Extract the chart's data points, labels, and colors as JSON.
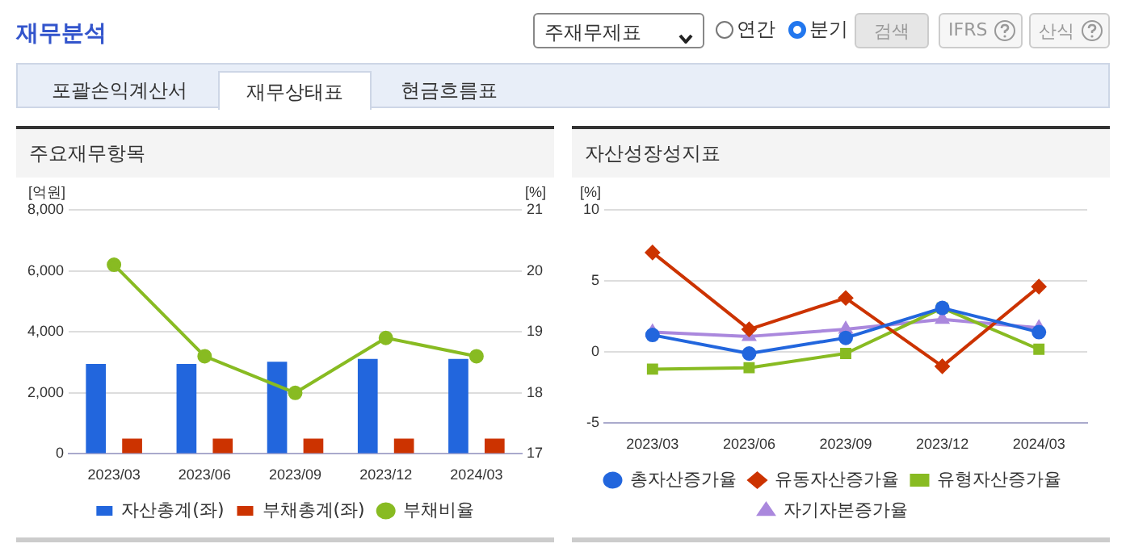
{
  "chart_data": [
    {
      "type": "bar",
      "title": "주요재무항목",
      "annotations": [
        "재무분석",
        "주재무제표",
        "연간",
        "분기",
        "검색",
        "IFRS",
        "산식",
        "포괄손익계산서",
        "재무상태표",
        "현금흐름표"
      ],
      "ylabel": "[억원]",
      "y2label": "[%]",
      "categories": [
        "2023/03",
        "2023/06",
        "2023/09",
        "2023/12",
        "2024/03"
      ],
      "series": [
        {
          "name": "자산총계(좌)",
          "color": "#2266dd",
          "values": [
            2950,
            2950,
            3020,
            3110,
            3110
          ]
        },
        {
          "name": "부채총계(좌)",
          "color": "#cc3300",
          "values": [
            500,
            500,
            500,
            500,
            500
          ]
        },
        {
          "name": "부채비율",
          "type": "line",
          "axis": "y2",
          "marker": "circle",
          "color": "#88bb22",
          "values": [
            20.1,
            18.6,
            18.0,
            18.9,
            18.6
          ]
        }
      ],
      "ylim": [
        0,
        8000
      ],
      "yticks": [
        0,
        {
          "value": 2000,
          "label": "2,000"
        },
        {
          "value": 4000,
          "label": "4,000"
        },
        {
          "value": 6000,
          "label": "6,000"
        },
        {
          "value": 8000,
          "label": "8,000"
        }
      ],
      "y2lim": [
        17,
        21
      ],
      "y2ticks": [
        17,
        18,
        19,
        20,
        21
      ],
      "grid": "y",
      "legend": "bottom"
    },
    {
      "type": "line",
      "title": "자산성장성지표",
      "ylabel": "[%]",
      "categories": [
        "2023/03",
        "2023/06",
        "2023/09",
        "2023/12",
        "2024/03"
      ],
      "series": [
        {
          "name": "총자산증가율",
          "color": "#2266dd",
          "marker": "circle",
          "values": [
            1.2,
            -0.1,
            1.0,
            3.1,
            1.4
          ]
        },
        {
          "name": "유동자산증가율",
          "color": "#cc3300",
          "marker": "diamond",
          "values": [
            7.0,
            1.6,
            3.8,
            -1.0,
            4.6
          ]
        },
        {
          "name": "유형자산증가율",
          "color": "#88bb22",
          "marker": "square",
          "values": [
            -1.2,
            -1.1,
            -0.1,
            3.1,
            0.2
          ]
        },
        {
          "name": "자기자본증가율",
          "color": "#aa88dd",
          "marker": "triangle",
          "values": [
            1.4,
            1.1,
            1.6,
            2.3,
            1.7
          ]
        }
      ],
      "ylim": [
        -5,
        10
      ],
      "yticks": [
        -5,
        0,
        5,
        10
      ],
      "grid": "y",
      "legend": "bottom"
    }
  ]
}
